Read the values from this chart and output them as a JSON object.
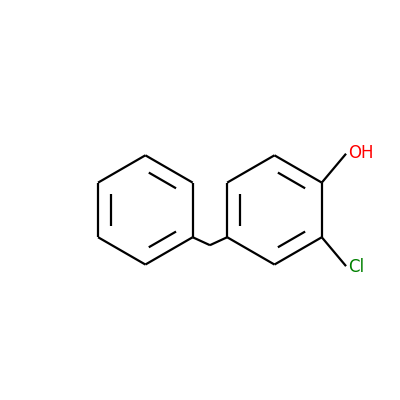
{
  "background_color": "#ffffff",
  "bond_color": "#000000",
  "cl_color": "#008000",
  "oh_color": "#ff0000",
  "line_width": 1.6,
  "figsize": [
    4.0,
    4.0
  ],
  "dpi": 100,
  "cl_label": "Cl",
  "oh_label": "OH",
  "cl_fontsize": 12,
  "oh_fontsize": 12
}
